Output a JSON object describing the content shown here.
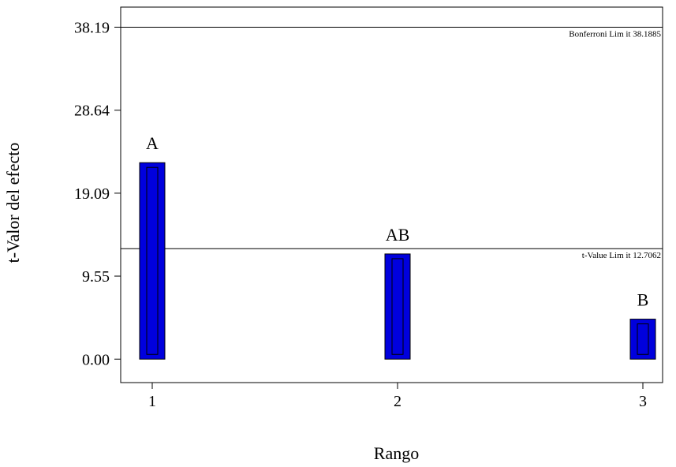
{
  "chart_data": {
    "type": "bar",
    "title": "",
    "xlabel": "Rango",
    "ylabel": "t-Valor del efecto",
    "categories": [
      "1",
      "2",
      "3"
    ],
    "values": [
      22.6,
      12.1,
      4.6
    ],
    "bar_labels": [
      "A",
      "AB",
      "B"
    ],
    "yticks": [
      0.0,
      9.55,
      19.09,
      28.64,
      38.19
    ],
    "ytick_labels": [
      "0.00",
      "9.55",
      "19.09",
      "28.64",
      "38.19"
    ],
    "ylim": [
      -2.7,
      40.5
    ],
    "grid": false,
    "reference_lines": [
      {
        "label": "Bonferroni Lim it 38.1885",
        "value": 38.1885
      },
      {
        "label": "t-Value Lim it 12.7062",
        "value": 12.7062
      }
    ],
    "bar_color": "#0000dd"
  }
}
